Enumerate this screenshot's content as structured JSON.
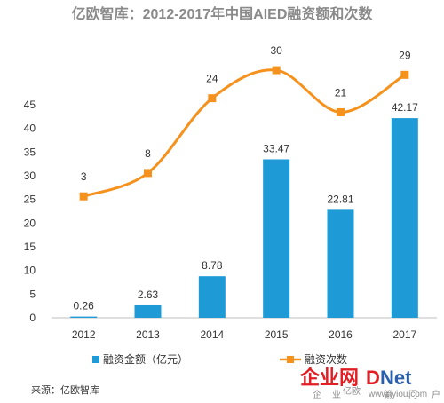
{
  "chart_data": {
    "type": "bar+line",
    "title": "亿欧智库：2012-2017年中国AIED融资额和次数",
    "categories": [
      "2012",
      "2013",
      "2014",
      "2015",
      "2016",
      "2017"
    ],
    "series": [
      {
        "name": "融资金额（亿元）",
        "type": "bar",
        "values": [
          0.26,
          2.63,
          8.78,
          33.47,
          22.81,
          42.17
        ],
        "color": "#1e9bd7"
      },
      {
        "name": "融资次数",
        "type": "line",
        "values": [
          3,
          8,
          24,
          30,
          21,
          29
        ],
        "color": "#f5921e"
      }
    ],
    "y_left": {
      "ticks": [
        "0",
        "5",
        "10",
        "15",
        "20",
        "25",
        "30",
        "35",
        "40",
        "45"
      ],
      "min": 0,
      "max": 45
    },
    "grid": false,
    "legend_position": "bottom"
  },
  "source": "来源：亿欧智库",
  "watermark": {
    "brand_a": "企业网",
    "brand_b": "D",
    "brand_c": "Net",
    "tagline_a": "企",
    "tagline_b": "业",
    "tagline_c": "门",
    "tagline_d": "户",
    "sub_left": "亿欧",
    "sub_mid": "第",
    "url": "www.iyiou.com",
    "colors": {
      "red": "#e01e24",
      "blue": "#2a5fae"
    }
  }
}
